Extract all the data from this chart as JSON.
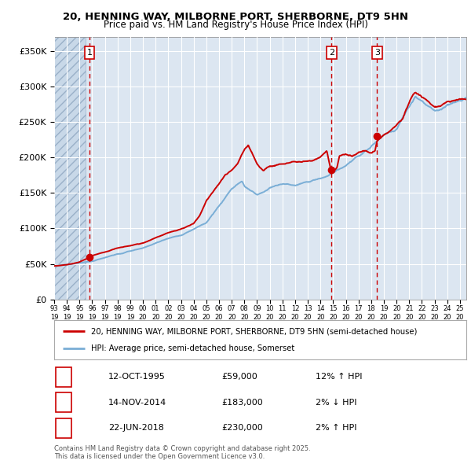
{
  "title_line1": "20, HENNING WAY, MILBORNE PORT, SHERBORNE, DT9 5HN",
  "title_line2": "Price paid vs. HM Land Registry's House Price Index (HPI)",
  "background_color": "#ffffff",
  "plot_bg_color": "#dce6f1",
  "grid_color": "#ffffff",
  "red_line_color": "#cc0000",
  "blue_line_color": "#7aaed6",
  "sale_marker_color": "#cc0000",
  "vline_color": "#cc0000",
  "purchases": [
    {
      "date_num": 1995.79,
      "price": 59000,
      "label": "1",
      "hpi_pct": "12%",
      "direction": "↑",
      "date_str": "12-OCT-1995"
    },
    {
      "date_num": 2014.88,
      "price": 183000,
      "label": "2",
      "hpi_pct": "2%",
      "direction": "↓",
      "date_str": "14-NOV-2014"
    },
    {
      "date_num": 2018.47,
      "price": 230000,
      "label": "3",
      "hpi_pct": "2%",
      "direction": "↑",
      "date_str": "22-JUN-2018"
    }
  ],
  "legend_label_red": "20, HENNING WAY, MILBORNE PORT, SHERBORNE, DT9 5HN (semi-detached house)",
  "legend_label_blue": "HPI: Average price, semi-detached house, Somerset",
  "footer_line1": "Contains HM Land Registry data © Crown copyright and database right 2025.",
  "footer_line2": "This data is licensed under the Open Government Licence v3.0.",
  "ylim": [
    0,
    370000
  ],
  "xlim_start": 1993.0,
  "xlim_end": 2025.5,
  "yticks": [
    0,
    50000,
    100000,
    150000,
    200000,
    250000,
    300000,
    350000
  ],
  "ytick_labels": [
    "£0",
    "£50K",
    "£100K",
    "£150K",
    "£200K",
    "£250K",
    "£300K",
    "£350K"
  ],
  "xtick_years": [
    1993,
    1994,
    1995,
    1996,
    1997,
    1998,
    1999,
    2000,
    2001,
    2002,
    2003,
    2004,
    2005,
    2006,
    2007,
    2008,
    2009,
    2010,
    2011,
    2012,
    2013,
    2014,
    2015,
    2016,
    2017,
    2018,
    2019,
    2020,
    2021,
    2022,
    2023,
    2024,
    2025
  ],
  "hatch_end": 1995.5,
  "purchase_prices": [
    59000,
    183000,
    230000
  ]
}
